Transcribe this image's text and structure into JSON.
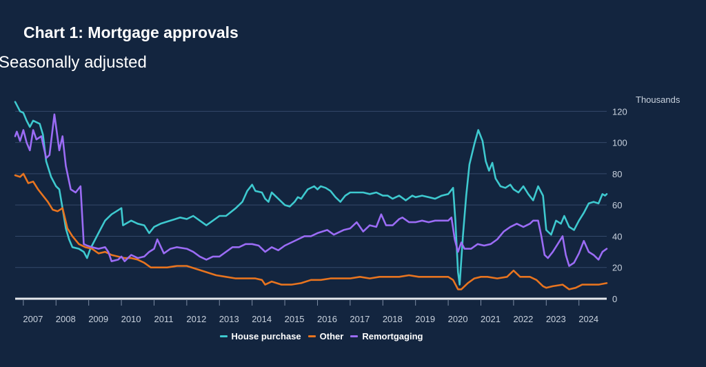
{
  "chart_data": {
    "type": "line",
    "title": "Chart 1: Mortgage approvals",
    "subtitle": "Seasonally adjusted",
    "ylabel": "Thousands",
    "xlabel": "",
    "ylim": [
      0,
      125
    ],
    "yticks": [
      0,
      20,
      40,
      60,
      80,
      100,
      120
    ],
    "xlim": [
      2006.75,
      2024.85
    ],
    "xticks": [
      "2007",
      "2008",
      "2009",
      "2010",
      "2011",
      "2012",
      "2013",
      "2014",
      "2015",
      "2016",
      "2017",
      "2018",
      "2019",
      "2020",
      "2021",
      "2022",
      "2023",
      "2024"
    ],
    "grid": true,
    "legend_position": "bottom",
    "series": [
      {
        "name": "House purchase",
        "color": "#3ec9cf",
        "points": [
          [
            2006.75,
            126
          ],
          [
            2006.9,
            120
          ],
          [
            2007.0,
            119
          ],
          [
            2007.1,
            114
          ],
          [
            2007.2,
            110
          ],
          [
            2007.3,
            114
          ],
          [
            2007.5,
            112
          ],
          [
            2007.6,
            105
          ],
          [
            2007.7,
            88
          ],
          [
            2007.85,
            78
          ],
          [
            2008.0,
            72
          ],
          [
            2008.1,
            70
          ],
          [
            2008.2,
            58
          ],
          [
            2008.3,
            45
          ],
          [
            2008.4,
            38
          ],
          [
            2008.5,
            33
          ],
          [
            2008.7,
            32
          ],
          [
            2008.85,
            30
          ],
          [
            2008.95,
            26
          ],
          [
            2009.05,
            32
          ],
          [
            2009.2,
            38
          ],
          [
            2009.35,
            44
          ],
          [
            2009.5,
            50
          ],
          [
            2009.7,
            54
          ],
          [
            2009.85,
            56
          ],
          [
            2010.0,
            58
          ],
          [
            2010.05,
            47
          ],
          [
            2010.3,
            50
          ],
          [
            2010.5,
            48
          ],
          [
            2010.7,
            47
          ],
          [
            2010.85,
            42
          ],
          [
            2011.0,
            46
          ],
          [
            2011.2,
            48
          ],
          [
            2011.5,
            50
          ],
          [
            2011.8,
            52
          ],
          [
            2012.0,
            51
          ],
          [
            2012.2,
            53
          ],
          [
            2012.4,
            50
          ],
          [
            2012.6,
            47
          ],
          [
            2012.8,
            50
          ],
          [
            2013.0,
            53
          ],
          [
            2013.2,
            53
          ],
          [
            2013.5,
            58
          ],
          [
            2013.7,
            62
          ],
          [
            2013.85,
            69
          ],
          [
            2014.0,
            73
          ],
          [
            2014.1,
            69
          ],
          [
            2014.3,
            68
          ],
          [
            2014.4,
            64
          ],
          [
            2014.5,
            62
          ],
          [
            2014.6,
            68
          ],
          [
            2014.8,
            64
          ],
          [
            2015.0,
            60
          ],
          [
            2015.15,
            59
          ],
          [
            2015.3,
            62
          ],
          [
            2015.4,
            65
          ],
          [
            2015.5,
            64
          ],
          [
            2015.6,
            67
          ],
          [
            2015.7,
            70
          ],
          [
            2015.9,
            72
          ],
          [
            2016.0,
            70
          ],
          [
            2016.1,
            72
          ],
          [
            2016.25,
            71
          ],
          [
            2016.4,
            69
          ],
          [
            2016.55,
            65
          ],
          [
            2016.7,
            62
          ],
          [
            2016.85,
            66
          ],
          [
            2017.0,
            68
          ],
          [
            2017.2,
            68
          ],
          [
            2017.4,
            68
          ],
          [
            2017.6,
            67
          ],
          [
            2017.8,
            68
          ],
          [
            2018.0,
            66
          ],
          [
            2018.15,
            66
          ],
          [
            2018.3,
            64
          ],
          [
            2018.5,
            66
          ],
          [
            2018.7,
            63
          ],
          [
            2018.9,
            66
          ],
          [
            2019.0,
            65
          ],
          [
            2019.2,
            66
          ],
          [
            2019.4,
            65
          ],
          [
            2019.6,
            64
          ],
          [
            2019.8,
            66
          ],
          [
            2020.0,
            67
          ],
          [
            2020.15,
            71
          ],
          [
            2020.22,
            50
          ],
          [
            2020.3,
            17
          ],
          [
            2020.35,
            9
          ],
          [
            2020.45,
            40
          ],
          [
            2020.55,
            66
          ],
          [
            2020.65,
            86
          ],
          [
            2020.8,
            99
          ],
          [
            2020.92,
            108
          ],
          [
            2021.05,
            101
          ],
          [
            2021.15,
            88
          ],
          [
            2021.25,
            82
          ],
          [
            2021.35,
            87
          ],
          [
            2021.45,
            77
          ],
          [
            2021.6,
            72
          ],
          [
            2021.75,
            71
          ],
          [
            2021.9,
            73
          ],
          [
            2022.0,
            70
          ],
          [
            2022.15,
            68
          ],
          [
            2022.3,
            72
          ],
          [
            2022.45,
            67
          ],
          [
            2022.6,
            63
          ],
          [
            2022.75,
            72
          ],
          [
            2022.9,
            66
          ],
          [
            2023.0,
            44
          ],
          [
            2023.15,
            41
          ],
          [
            2023.3,
            50
          ],
          [
            2023.45,
            48
          ],
          [
            2023.55,
            53
          ],
          [
            2023.7,
            46
          ],
          [
            2023.85,
            44
          ],
          [
            2024.0,
            50
          ],
          [
            2024.15,
            55
          ],
          [
            2024.3,
            61
          ],
          [
            2024.45,
            62
          ],
          [
            2024.6,
            61
          ],
          [
            2024.72,
            67
          ],
          [
            2024.8,
            66
          ],
          [
            2024.85,
            67
          ]
        ]
      },
      {
        "name": "Other",
        "color": "#e8741f",
        "points": [
          [
            2006.75,
            79
          ],
          [
            2006.9,
            78
          ],
          [
            2007.0,
            80
          ],
          [
            2007.15,
            74
          ],
          [
            2007.3,
            75
          ],
          [
            2007.45,
            70
          ],
          [
            2007.6,
            66
          ],
          [
            2007.75,
            62
          ],
          [
            2007.9,
            57
          ],
          [
            2008.05,
            56
          ],
          [
            2008.2,
            58
          ],
          [
            2008.35,
            45
          ],
          [
            2008.5,
            40
          ],
          [
            2008.7,
            35
          ],
          [
            2008.9,
            33
          ],
          [
            2009.1,
            32
          ],
          [
            2009.3,
            29
          ],
          [
            2009.5,
            30
          ],
          [
            2009.7,
            28
          ],
          [
            2009.9,
            27
          ],
          [
            2010.1,
            26
          ],
          [
            2010.3,
            26
          ],
          [
            2010.5,
            25
          ],
          [
            2010.7,
            23
          ],
          [
            2010.9,
            20
          ],
          [
            2011.1,
            20
          ],
          [
            2011.4,
            20
          ],
          [
            2011.7,
            21
          ],
          [
            2012.0,
            21
          ],
          [
            2012.3,
            19
          ],
          [
            2012.6,
            17
          ],
          [
            2012.9,
            15
          ],
          [
            2013.2,
            14
          ],
          [
            2013.5,
            13
          ],
          [
            2013.8,
            13
          ],
          [
            2014.1,
            13
          ],
          [
            2014.3,
            12
          ],
          [
            2014.4,
            9
          ],
          [
            2014.6,
            11
          ],
          [
            2014.9,
            9
          ],
          [
            2015.2,
            9
          ],
          [
            2015.5,
            10
          ],
          [
            2015.8,
            12
          ],
          [
            2016.1,
            12
          ],
          [
            2016.4,
            13
          ],
          [
            2016.7,
            13
          ],
          [
            2017.0,
            13
          ],
          [
            2017.3,
            14
          ],
          [
            2017.6,
            13
          ],
          [
            2017.9,
            14
          ],
          [
            2018.2,
            14
          ],
          [
            2018.5,
            14
          ],
          [
            2018.8,
            15
          ],
          [
            2019.1,
            14
          ],
          [
            2019.4,
            14
          ],
          [
            2019.7,
            14
          ],
          [
            2020.0,
            14
          ],
          [
            2020.15,
            12
          ],
          [
            2020.3,
            6
          ],
          [
            2020.4,
            6
          ],
          [
            2020.6,
            10
          ],
          [
            2020.8,
            13
          ],
          [
            2021.0,
            14
          ],
          [
            2021.2,
            14
          ],
          [
            2021.5,
            13
          ],
          [
            2021.8,
            14
          ],
          [
            2022.0,
            18
          ],
          [
            2022.2,
            14
          ],
          [
            2022.5,
            14
          ],
          [
            2022.7,
            12
          ],
          [
            2022.9,
            8
          ],
          [
            2023.0,
            7
          ],
          [
            2023.2,
            8
          ],
          [
            2023.5,
            9
          ],
          [
            2023.7,
            6
          ],
          [
            2023.9,
            7
          ],
          [
            2024.1,
            9
          ],
          [
            2024.4,
            9
          ],
          [
            2024.6,
            9
          ],
          [
            2024.85,
            10
          ]
        ]
      },
      {
        "name": "Remortgaging",
        "color": "#9b6cf5",
        "points": [
          [
            2006.75,
            104
          ],
          [
            2006.8,
            107
          ],
          [
            2006.9,
            101
          ],
          [
            2007.0,
            108
          ],
          [
            2007.1,
            100
          ],
          [
            2007.2,
            95
          ],
          [
            2007.3,
            108
          ],
          [
            2007.4,
            102
          ],
          [
            2007.55,
            104
          ],
          [
            2007.7,
            90
          ],
          [
            2007.8,
            92
          ],
          [
            2007.95,
            118
          ],
          [
            2008.1,
            95
          ],
          [
            2008.2,
            104
          ],
          [
            2008.3,
            85
          ],
          [
            2008.45,
            70
          ],
          [
            2008.6,
            68
          ],
          [
            2008.75,
            72
          ],
          [
            2008.85,
            35
          ],
          [
            2008.95,
            34
          ],
          [
            2009.1,
            33
          ],
          [
            2009.3,
            32
          ],
          [
            2009.5,
            33
          ],
          [
            2009.6,
            30
          ],
          [
            2009.7,
            24
          ],
          [
            2009.9,
            25
          ],
          [
            2010.0,
            27
          ],
          [
            2010.1,
            24
          ],
          [
            2010.3,
            28
          ],
          [
            2010.5,
            26
          ],
          [
            2010.7,
            27
          ],
          [
            2010.85,
            30
          ],
          [
            2011.0,
            32
          ],
          [
            2011.1,
            38
          ],
          [
            2011.3,
            29
          ],
          [
            2011.5,
            32
          ],
          [
            2011.7,
            33
          ],
          [
            2012.0,
            32
          ],
          [
            2012.2,
            30
          ],
          [
            2012.4,
            27
          ],
          [
            2012.6,
            25
          ],
          [
            2012.8,
            27
          ],
          [
            2013.0,
            27
          ],
          [
            2013.2,
            30
          ],
          [
            2013.4,
            33
          ],
          [
            2013.6,
            33
          ],
          [
            2013.8,
            35
          ],
          [
            2014.0,
            35
          ],
          [
            2014.2,
            34
          ],
          [
            2014.4,
            30
          ],
          [
            2014.6,
            33
          ],
          [
            2014.8,
            31
          ],
          [
            2015.0,
            34
          ],
          [
            2015.2,
            36
          ],
          [
            2015.4,
            38
          ],
          [
            2015.6,
            40
          ],
          [
            2015.8,
            40
          ],
          [
            2016.0,
            42
          ],
          [
            2016.3,
            44
          ],
          [
            2016.5,
            41
          ],
          [
            2016.8,
            44
          ],
          [
            2017.0,
            45
          ],
          [
            2017.2,
            49
          ],
          [
            2017.4,
            43
          ],
          [
            2017.6,
            47
          ],
          [
            2017.8,
            46
          ],
          [
            2017.95,
            54
          ],
          [
            2018.1,
            47
          ],
          [
            2018.3,
            47
          ],
          [
            2018.5,
            51
          ],
          [
            2018.6,
            52
          ],
          [
            2018.8,
            49
          ],
          [
            2019.0,
            49
          ],
          [
            2019.2,
            50
          ],
          [
            2019.4,
            49
          ],
          [
            2019.6,
            50
          ],
          [
            2019.8,
            50
          ],
          [
            2020.0,
            50
          ],
          [
            2020.1,
            52
          ],
          [
            2020.2,
            38
          ],
          [
            2020.3,
            30
          ],
          [
            2020.4,
            36
          ],
          [
            2020.5,
            32
          ],
          [
            2020.7,
            32
          ],
          [
            2020.9,
            35
          ],
          [
            2021.1,
            34
          ],
          [
            2021.3,
            35
          ],
          [
            2021.5,
            38
          ],
          [
            2021.7,
            43
          ],
          [
            2021.9,
            46
          ],
          [
            2022.1,
            48
          ],
          [
            2022.3,
            46
          ],
          [
            2022.5,
            48
          ],
          [
            2022.6,
            50
          ],
          [
            2022.75,
            50
          ],
          [
            2022.85,
            40
          ],
          [
            2022.95,
            28
          ],
          [
            2023.05,
            26
          ],
          [
            2023.2,
            30
          ],
          [
            2023.35,
            35
          ],
          [
            2023.5,
            40
          ],
          [
            2023.6,
            28
          ],
          [
            2023.7,
            21
          ],
          [
            2023.85,
            23
          ],
          [
            2024.0,
            29
          ],
          [
            2024.15,
            37
          ],
          [
            2024.3,
            30
          ],
          [
            2024.45,
            28
          ],
          [
            2024.6,
            25
          ],
          [
            2024.72,
            30
          ],
          [
            2024.85,
            32
          ]
        ]
      }
    ]
  }
}
